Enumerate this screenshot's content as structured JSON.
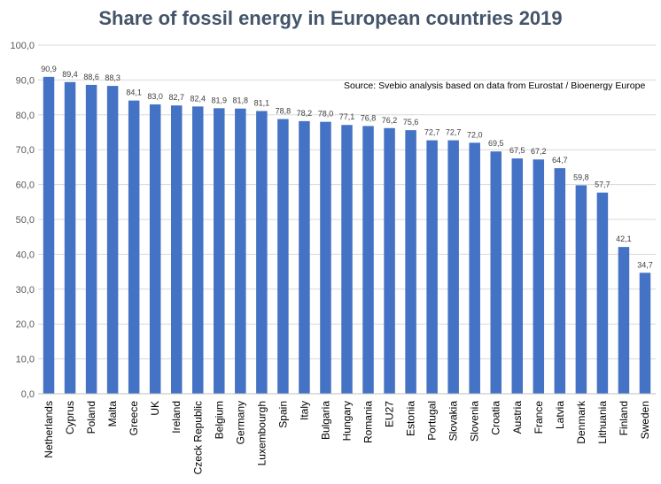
{
  "chart_data": {
    "type": "bar",
    "title": "Share of fossil energy  in European countries 2019",
    "annotation": "Source: Svebio analysis based on data from Eurostat / Bioenergy Europe",
    "xlabel": "",
    "ylabel": "",
    "ylim": [
      0,
      100
    ],
    "yticks": [
      "0,0",
      "10,0",
      "20,0",
      "30,0",
      "40,0",
      "50,0",
      "60,0",
      "70,0",
      "80,0",
      "90,0",
      "100,0"
    ],
    "grid": true,
    "bar_color": "#4472c4",
    "categories": [
      "Netherlands",
      "Cyprus",
      "Poland",
      "Malta",
      "Greece",
      "UK",
      "Ireland",
      "Czeck Republic",
      "Belgium",
      "Germany",
      "Luxembourgh",
      "Spain",
      "Italy",
      "Bulgaria",
      "Hungary",
      "Romania",
      "EU27",
      "Estonia",
      "Portugal",
      "Slovakia",
      "Slovenia",
      "Croatia",
      "Austria",
      "France",
      "Latvia",
      "Denmark",
      "Lithuania",
      "Finland",
      "Sweden"
    ],
    "values": [
      90.9,
      89.4,
      88.6,
      88.3,
      84.1,
      83.0,
      82.7,
      82.4,
      81.9,
      81.8,
      81.1,
      78.8,
      78.2,
      78.0,
      77.1,
      76.8,
      76.2,
      75.6,
      72.7,
      72.7,
      72.0,
      69.5,
      67.5,
      67.2,
      64.7,
      59.8,
      57.7,
      42.1,
      34.7
    ],
    "value_labels": [
      "90,9",
      "89,4",
      "88,6",
      "88,3",
      "84,1",
      "83,0",
      "82,7",
      "82,4",
      "81,9",
      "81,8",
      "81,1",
      "78,8",
      "78,2",
      "78,0",
      "77,1",
      "76,8",
      "76,2",
      "75,6",
      "72,7",
      "72,7",
      "72,0",
      "69,5",
      "67,5",
      "67,2",
      "64,7",
      "59,8",
      "57,7",
      "42,1",
      "34,7"
    ]
  }
}
